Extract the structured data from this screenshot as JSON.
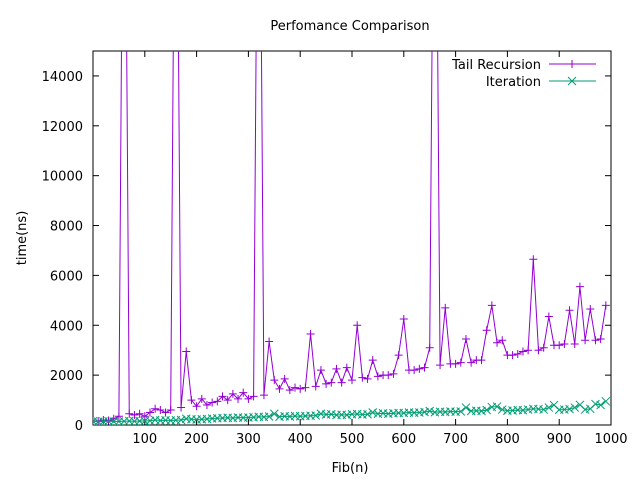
{
  "chart_data": {
    "type": "line",
    "title": "Perfomance Comparison",
    "xlabel": "Fib(n)",
    "ylabel": "time(ns)",
    "xlim": [
      0,
      1000
    ],
    "ylim": [
      0,
      15000
    ],
    "xticks": [
      100,
      200,
      300,
      400,
      500,
      600,
      700,
      800,
      900,
      1000
    ],
    "yticks": [
      0,
      2000,
      4000,
      6000,
      8000,
      10000,
      12000,
      14000
    ],
    "grid": false,
    "legend_position": "top-right",
    "x": [
      0,
      10,
      20,
      30,
      40,
      50,
      60,
      70,
      80,
      90,
      100,
      110,
      120,
      130,
      140,
      150,
      160,
      170,
      180,
      190,
      200,
      210,
      220,
      230,
      240,
      250,
      260,
      270,
      280,
      290,
      300,
      310,
      320,
      330,
      340,
      350,
      360,
      370,
      380,
      390,
      400,
      410,
      420,
      430,
      440,
      450,
      460,
      470,
      480,
      490,
      500,
      510,
      520,
      530,
      540,
      550,
      560,
      570,
      580,
      590,
      600,
      610,
      620,
      630,
      640,
      650,
      660,
      670,
      680,
      690,
      700,
      710,
      720,
      730,
      740,
      750,
      760,
      770,
      780,
      790,
      800,
      810,
      820,
      830,
      840,
      850,
      860,
      870,
      880,
      890,
      900,
      910,
      920,
      930,
      940,
      950,
      960,
      970,
      980,
      990
    ],
    "series": [
      {
        "name": "Tail Recursion",
        "color": "#9400d3",
        "marker": "plus",
        "values": [
          150,
          160,
          200,
          180,
          250,
          350,
          30000,
          450,
          400,
          450,
          350,
          500,
          650,
          600,
          500,
          600,
          30000,
          700,
          2950,
          1000,
          750,
          1050,
          800,
          900,
          950,
          1150,
          1000,
          1250,
          1050,
          1300,
          1050,
          1150,
          30000,
          1200,
          3350,
          1800,
          1450,
          1850,
          1400,
          1500,
          1450,
          1500,
          3650,
          1550,
          2200,
          1650,
          1700,
          2250,
          1700,
          2300,
          1800,
          4000,
          1900,
          1850,
          2600,
          1950,
          2000,
          2000,
          2050,
          2800,
          4250,
          2200,
          2200,
          2250,
          2300,
          3100,
          30000,
          2400,
          4700,
          2450,
          2450,
          2500,
          3450,
          2500,
          2600,
          2600,
          3800,
          4800,
          3300,
          3400,
          2800,
          2800,
          2850,
          2950,
          3000,
          6650,
          3000,
          3100,
          4350,
          3200,
          3200,
          3250,
          4600,
          3250,
          5550,
          3400,
          4650,
          3400,
          3450,
          4800
        ]
      },
      {
        "name": "Iteration",
        "color": "#009e73",
        "marker": "cross",
        "values": [
          150,
          130,
          140,
          150,
          140,
          140,
          150,
          160,
          150,
          160,
          160,
          170,
          200,
          180,
          190,
          180,
          190,
          200,
          250,
          230,
          220,
          230,
          240,
          260,
          270,
          280,
          290,
          280,
          300,
          290,
          300,
          310,
          330,
          320,
          340,
          450,
          330,
          350,
          340,
          360,
          350,
          360,
          370,
          380,
          450,
          420,
          430,
          400,
          410,
          400,
          430,
          440,
          420,
          430,
          500,
          450,
          470,
          450,
          470,
          480,
          480,
          500,
          490,
          500,
          520,
          560,
          510,
          530,
          520,
          540,
          530,
          540,
          700,
          560,
          570,
          560,
          600,
          720,
          740,
          620,
          570,
          580,
          600,
          590,
          620,
          650,
          640,
          620,
          700,
          800,
          610,
          620,
          640,
          700,
          810,
          620,
          650,
          840,
          800,
          950
        ]
      }
    ]
  }
}
